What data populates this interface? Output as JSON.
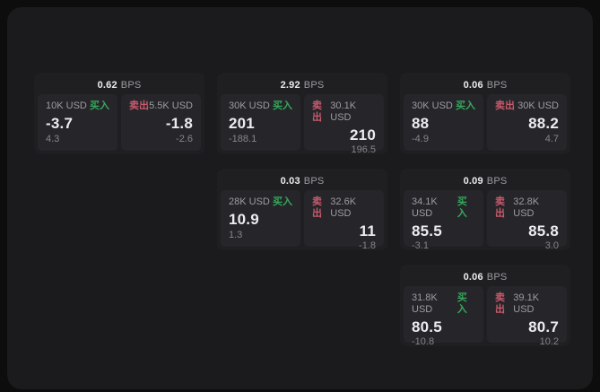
{
  "colors": {
    "outer_bg": "#0d0d0d",
    "window_bg": "#1b1b1d",
    "card_bg": "#1f1f22",
    "panel_bg": "#26262a",
    "text_primary": "#ececee",
    "text_secondary": "#9b9ba1",
    "text_muted": "#85858b",
    "buy_green": "#35a85c",
    "sell_red": "#c75a6c"
  },
  "labels": {
    "bps_unit": "BPS",
    "buy": "买入",
    "sell": "卖出"
  },
  "cards": [
    {
      "bps": "0.62",
      "buy": {
        "amount": "10K USD",
        "price": "-3.7",
        "delta": "4.3"
      },
      "sell": {
        "amount": "5.5K USD",
        "price": "-1.8",
        "delta": "-2.6"
      }
    },
    {
      "bps": "2.92",
      "buy": {
        "amount": "30K USD",
        "price": "201",
        "delta": "-188.1"
      },
      "sell": {
        "amount": "30.1K USD",
        "price": "210",
        "delta": "196.5"
      }
    },
    {
      "bps": "0.06",
      "buy": {
        "amount": "30K USD",
        "price": "88",
        "delta": "-4.9"
      },
      "sell": {
        "amount": "30K USD",
        "price": "88.2",
        "delta": "4.7"
      }
    },
    {
      "bps": "0.03",
      "buy": {
        "amount": "28K USD",
        "price": "10.9",
        "delta": "1.3"
      },
      "sell": {
        "amount": "32.6K USD",
        "price": "11",
        "delta": "-1.8"
      }
    },
    {
      "bps": "0.09",
      "buy": {
        "amount": "34.1K USD",
        "price": "85.5",
        "delta": "-3.1"
      },
      "sell": {
        "amount": "32.8K USD",
        "price": "85.8",
        "delta": "3.0"
      }
    },
    {
      "bps": "0.06",
      "buy": {
        "amount": "31.8K USD",
        "price": "80.5",
        "delta": "-10.8"
      },
      "sell": {
        "amount": "39.1K USD",
        "price": "80.7",
        "delta": "10.2"
      }
    }
  ]
}
